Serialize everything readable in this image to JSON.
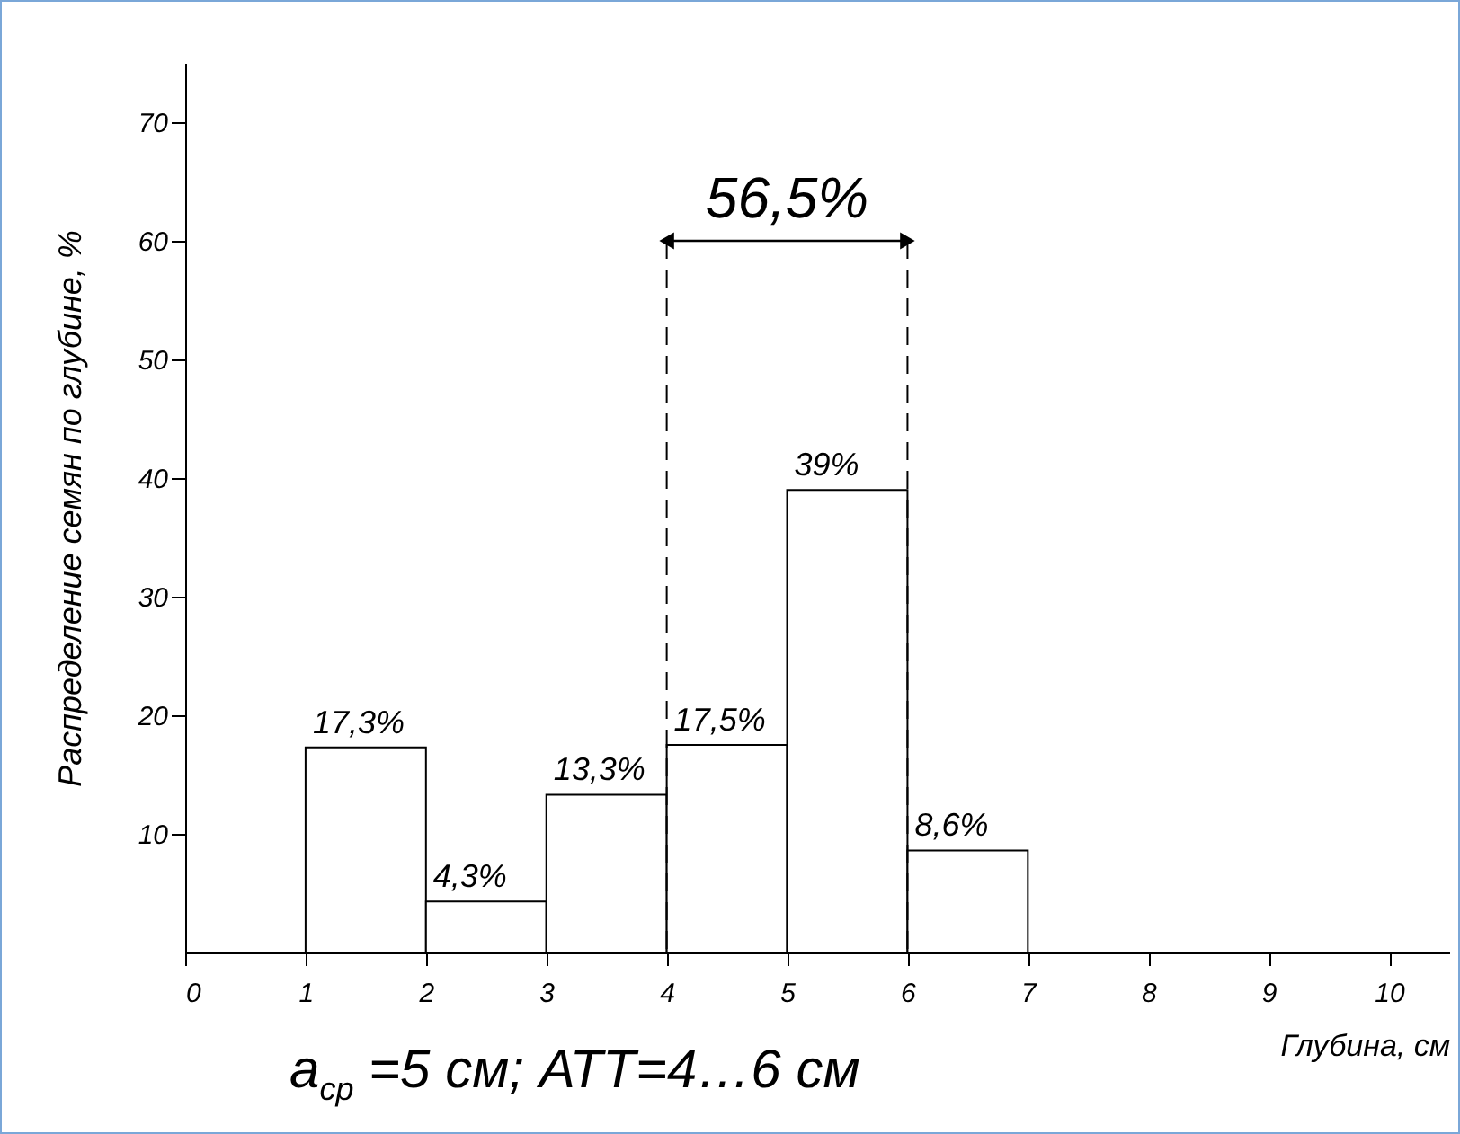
{
  "chart_data": {
    "type": "histogram",
    "ylabel": "Распределение семян по глубине, %",
    "xlabel": "Глубина, см",
    "bins": [
      1,
      2,
      3,
      4,
      5,
      6,
      7
    ],
    "values": [
      17.3,
      4.3,
      13.3,
      17.5,
      39,
      8.6
    ],
    "value_labels": [
      "17,3%",
      "4,3%",
      "13,3%",
      "17,5%",
      "39%",
      "8,6%"
    ],
    "color": "#ffffff",
    "xlim": [
      0,
      10.5
    ],
    "xticks": [
      0,
      1,
      2,
      3,
      4,
      5,
      6,
      7,
      8,
      9,
      10
    ],
    "ylim": [
      0,
      75
    ],
    "yticks": [
      10,
      20,
      30,
      40,
      50,
      60,
      70
    ],
    "grid": false,
    "ref_lines": [
      {
        "axis": "x",
        "value": 4,
        "line_style": "dashed"
      },
      {
        "axis": "x",
        "value": 6,
        "line_style": "dashed"
      }
    ],
    "annotations": [
      "56,5%",
      "a$_{ср}$ =5 см; АТТ=4…6 см"
    ]
  }
}
